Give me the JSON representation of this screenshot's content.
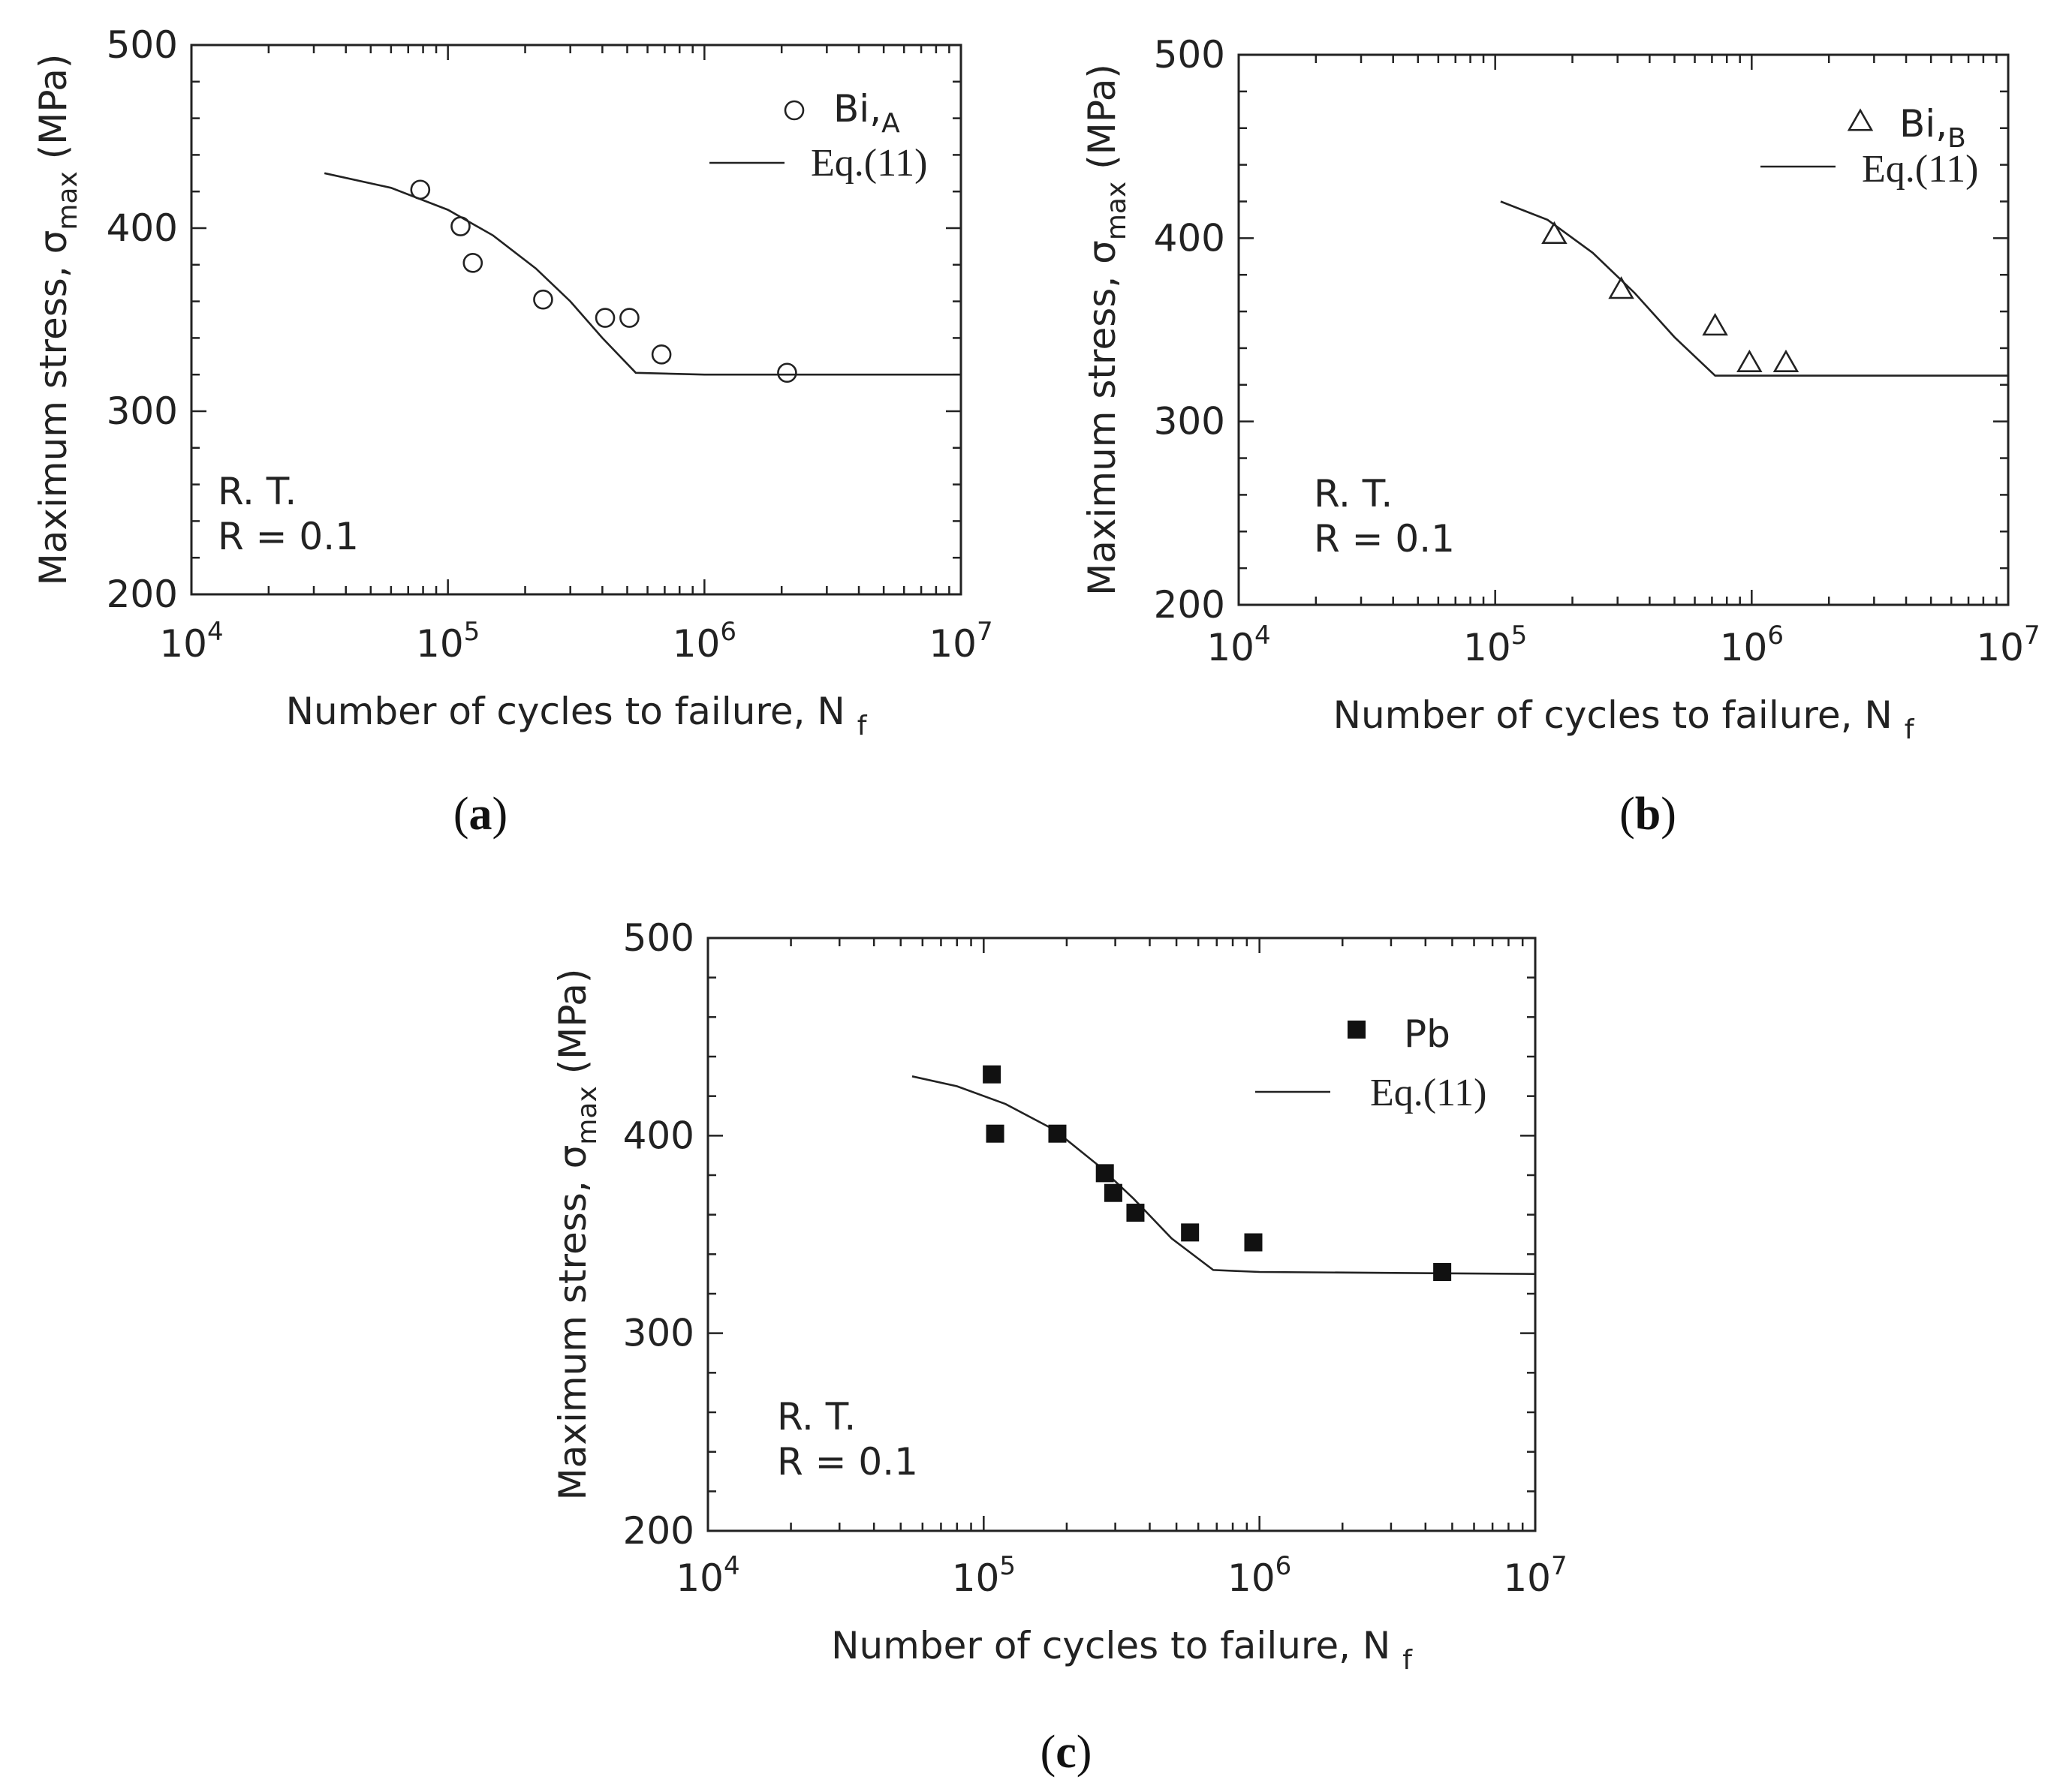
{
  "figure": {
    "captions": [
      {
        "open": "(",
        "letter": "a",
        "close": ")"
      },
      {
        "open": "(",
        "letter": "b",
        "close": ")"
      },
      {
        "open": "(",
        "letter": "c",
        "close": ")"
      }
    ]
  },
  "chart_data": [
    {
      "id": "a",
      "type": "scatter",
      "title": "",
      "xlabel": "Number of cycles to failure, N",
      "xlabel_sub": "f",
      "ylabel": "Maximum stress, σ",
      "ylabel_sub": "max",
      "ylabel_unit": "(MPa)",
      "xscale": "log",
      "xlim": [
        10000,
        10000000
      ],
      "ylim": [
        200,
        500
      ],
      "x_ticks": [
        {
          "base": "10",
          "exp": "4"
        },
        {
          "base": "10",
          "exp": "5"
        },
        {
          "base": "10",
          "exp": "6"
        },
        {
          "base": "10",
          "exp": "7"
        }
      ],
      "y_ticks": [
        "200",
        "300",
        "400",
        "500"
      ],
      "annotations": [
        "R. T.",
        "R = 0.1"
      ],
      "legend_position": "top-right",
      "series": [
        {
          "name": "Bi,",
          "name_sub": "A",
          "marker": "open-circle",
          "points": [
            [
              78000,
              421
            ],
            [
              112000,
              401
            ],
            [
              125000,
              381
            ],
            [
              235000,
              361
            ],
            [
              410000,
              351
            ],
            [
              510000,
              351
            ],
            [
              680000,
              331
            ],
            [
              2100000,
              321
            ]
          ]
        },
        {
          "name": "Eq.(11)",
          "marker": "line",
          "points": [
            [
              33000,
              430
            ],
            [
              60000,
              422
            ],
            [
              100000,
              410
            ],
            [
              150000,
              396
            ],
            [
              220000,
              378
            ],
            [
              300000,
              360
            ],
            [
              400000,
              340
            ],
            [
              540000,
              321
            ],
            [
              1000000,
              320
            ],
            [
              10000000,
              320
            ]
          ]
        }
      ]
    },
    {
      "id": "b",
      "type": "scatter",
      "title": "",
      "xlabel": "Number of cycles to failure, N",
      "xlabel_sub": "f",
      "ylabel": "Maximum stress, σ",
      "ylabel_sub": "max",
      "ylabel_unit": "(MPa)",
      "xscale": "log",
      "xlim": [
        10000,
        10000000
      ],
      "ylim": [
        200,
        500
      ],
      "x_ticks": [
        {
          "base": "10",
          "exp": "4"
        },
        {
          "base": "10",
          "exp": "5"
        },
        {
          "base": "10",
          "exp": "6"
        },
        {
          "base": "10",
          "exp": "7"
        }
      ],
      "y_ticks": [
        "200",
        "300",
        "400",
        "500"
      ],
      "annotations": [
        "R. T.",
        "R = 0.1"
      ],
      "legend_position": "top-right",
      "series": [
        {
          "name": "Bi,",
          "name_sub": "B",
          "marker": "open-triangle",
          "points": [
            [
              170000,
              402
            ],
            [
              310000,
              372
            ],
            [
              720000,
              352
            ],
            [
              980000,
              332
            ],
            [
              1360000,
              332
            ]
          ]
        },
        {
          "name": "Eq.(11)",
          "marker": "line",
          "points": [
            [
              105000,
              420
            ],
            [
              160000,
              410
            ],
            [
              240000,
              392
            ],
            [
              350000,
              370
            ],
            [
              500000,
              346
            ],
            [
              720000,
              325
            ],
            [
              1000000,
              325
            ],
            [
              10000000,
              325
            ]
          ]
        }
      ]
    },
    {
      "id": "c",
      "type": "scatter",
      "title": "",
      "xlabel": "Number of cycles to failure, N",
      "xlabel_sub": "f",
      "ylabel": "Maximum stress, σ",
      "ylabel_sub": "max",
      "ylabel_unit": "(MPa)",
      "xscale": "log",
      "xlim": [
        10000,
        10000000
      ],
      "ylim": [
        200,
        500
      ],
      "x_ticks": [
        {
          "base": "10",
          "exp": "4"
        },
        {
          "base": "10",
          "exp": "5"
        },
        {
          "base": "10",
          "exp": "6"
        },
        {
          "base": "10",
          "exp": "7"
        }
      ],
      "y_ticks": [
        "200",
        "300",
        "400",
        "500"
      ],
      "annotations": [
        "R. T.",
        "R = 0.1"
      ],
      "legend_position": "top-right",
      "series": [
        {
          "name": "Pb",
          "name_sub": "",
          "marker": "filled-square",
          "points": [
            [
              107000,
              431
            ],
            [
              110000,
              401
            ],
            [
              185000,
              401
            ],
            [
              275000,
              381
            ],
            [
              295000,
              371
            ],
            [
              355000,
              361
            ],
            [
              560000,
              351
            ],
            [
              950000,
              346
            ],
            [
              4600000,
              331
            ]
          ]
        },
        {
          "name": "Eq.(11)",
          "marker": "line",
          "points": [
            [
              55000,
              430
            ],
            [
              80000,
              425
            ],
            [
              120000,
              416
            ],
            [
              180000,
              403
            ],
            [
              260000,
              385
            ],
            [
              350000,
              368
            ],
            [
              480000,
              348
            ],
            [
              680000,
              332
            ],
            [
              1000000,
              331
            ],
            [
              10000000,
              330
            ]
          ]
        }
      ]
    }
  ]
}
